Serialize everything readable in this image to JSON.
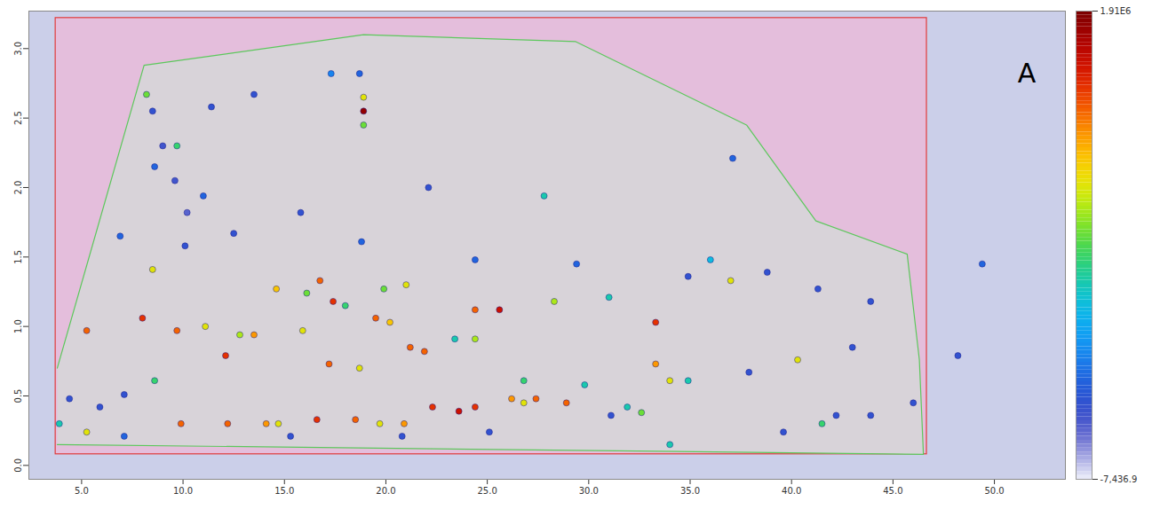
{
  "chart_data": {
    "type": "scatter",
    "xlim": [
      2.4,
      53.5
    ],
    "ylim": [
      -0.1,
      3.27
    ],
    "xticks": [
      {
        "value": 5,
        "label": "5.0"
      },
      {
        "value": 10,
        "label": "10.0"
      },
      {
        "value": 15,
        "label": "15.0"
      },
      {
        "value": 20,
        "label": "20.0"
      },
      {
        "value": 25,
        "label": "25.0"
      },
      {
        "value": 30,
        "label": "30.0"
      },
      {
        "value": 35,
        "label": "35.0"
      },
      {
        "value": 40,
        "label": "40.0"
      },
      {
        "value": 45,
        "label": "45.0"
      },
      {
        "value": 50,
        "label": "50.0"
      }
    ],
    "yticks": [
      {
        "value": 0,
        "label": "0.0"
      },
      {
        "value": 0.5,
        "label": "0.5"
      },
      {
        "value": 1,
        "label": "1.0"
      },
      {
        "value": 1.5,
        "label": "1.5"
      },
      {
        "value": 2,
        "label": "2.0"
      },
      {
        "value": 2.5,
        "label": "2.5"
      },
      {
        "value": 3,
        "label": "3.0"
      }
    ],
    "rectangle": {
      "x": [
        3.72,
        46.67
      ],
      "y": [
        0.08,
        3.22
      ],
      "color": "#e03a3a"
    },
    "polygon": {
      "x": [
        3.8,
        8.08,
        18.9,
        29.36,
        37.78,
        41.2,
        45.7,
        46.3,
        46.5,
        3.8
      ],
      "y": [
        0.7,
        2.88,
        3.1,
        3.05,
        2.45,
        1.76,
        1.52,
        0.76,
        0.08,
        0.15
      ],
      "color": "#5cc85c"
    },
    "peaks": {
      "x": [
        18.9,
        18.9,
        18.9,
        18.7,
        8.2,
        8.5,
        9.0,
        9.6,
        10.2,
        9.7,
        11.0,
        27.8,
        36.0,
        37.0,
        25.6,
        24.4,
        28.3,
        33.3,
        33.3,
        40.3,
        41.5,
        34.0,
        5.25,
        5.25,
        3.9,
        8.0,
        8.5,
        9.7,
        9.9,
        8.6,
        11.1,
        12.1,
        12.8,
        13.5,
        12.2,
        14.1,
        14.7,
        14.6,
        15.9,
        16.1,
        16.75,
        17.4,
        17.2,
        16.6,
        18.7,
        18.0,
        18.5,
        19.5,
        20.2,
        19.7,
        21.0,
        21.2,
        21.9,
        20.9,
        22.3,
        23.6,
        24.4,
        24.4,
        23.4,
        26.8,
        27.4,
        28.9,
        26.8,
        26.2,
        29.8,
        31.9,
        32.6,
        31.0,
        34.0,
        34.9,
        19.9,
        18.8,
        17.3,
        13.5,
        8.6,
        6.9,
        10.1,
        12.5,
        15.8,
        22.1,
        24.4,
        29.4,
        34.9,
        38.8,
        43.9,
        43.0,
        37.9,
        46.0,
        48.2,
        49.4,
        43.9,
        39.6,
        37.1,
        11.4,
        5.9,
        7.1,
        4.4,
        31.1,
        25.1,
        20.8,
        15.3,
        7.1,
        41.3,
        42.2
      ],
      "y": [
        2.65,
        2.55,
        2.45,
        2.82,
        2.67,
        2.55,
        2.3,
        2.05,
        1.82,
        2.3,
        1.94,
        1.94,
        1.48,
        1.33,
        1.12,
        1.12,
        1.18,
        1.03,
        0.73,
        0.76,
        0.3,
        0.15,
        0.97,
        0.24,
        0.3,
        1.06,
        1.41,
        0.97,
        0.3,
        0.61,
        1.0,
        0.79,
        0.94,
        0.94,
        0.3,
        0.3,
        0.3,
        1.27,
        0.97,
        1.24,
        1.33,
        1.18,
        0.73,
        0.33,
        0.7,
        1.15,
        0.33,
        1.06,
        1.03,
        0.3,
        1.3,
        0.85,
        0.82,
        0.3,
        0.42,
        0.39,
        0.42,
        0.91,
        0.91,
        0.61,
        0.48,
        0.45,
        0.45,
        0.48,
        0.58,
        0.42,
        0.38,
        1.21,
        0.61,
        0.61,
        1.27,
        1.61,
        2.82,
        2.67,
        2.15,
        1.65,
        1.58,
        1.67,
        1.82,
        2.0,
        1.48,
        1.45,
        1.36,
        1.39,
        1.18,
        0.85,
        0.67,
        0.45,
        0.79,
        1.45,
        0.36,
        0.24,
        2.21,
        2.58,
        0.42,
        0.51,
        0.48,
        0.36,
        0.24,
        0.21,
        0.21,
        0.21,
        1.27,
        0.36
      ],
      "intensity": [
        1200000,
        1850000,
        1000000,
        400000,
        1000000,
        300000,
        250000,
        250000,
        200000,
        900000,
        400000,
        800000,
        700000,
        1200000,
        1700000,
        1500000,
        1100000,
        1600000,
        1400000,
        1200000,
        900000,
        800000,
        1500000,
        1200000,
        800000,
        1600000,
        1200000,
        1500000,
        1500000,
        900000,
        1200000,
        1600000,
        1100000,
        1400000,
        1500000,
        1400000,
        1200000,
        1300000,
        1200000,
        1000000,
        1500000,
        1600000,
        1500000,
        1600000,
        1200000,
        900000,
        1500000,
        1500000,
        1300000,
        1200000,
        1200000,
        1500000,
        1500000,
        1400000,
        1600000,
        1700000,
        1600000,
        1100000,
        800000,
        900000,
        1500000,
        1500000,
        1200000,
        1400000,
        800000,
        800000,
        1000000,
        800000,
        1200000,
        800000,
        1000000,
        400000,
        500000,
        300000,
        400000,
        400000,
        300000,
        300000,
        300000,
        300000,
        400000,
        400000,
        300000,
        300000,
        300000,
        300000,
        300000,
        300000,
        300000,
        400000,
        300000,
        300000,
        400000,
        300000,
        300000,
        300000,
        300000,
        300000,
        300000,
        300000,
        300000,
        400000,
        300000,
        300000
      ]
    },
    "colorbar": {
      "range": [
        -7436.9,
        1910000
      ],
      "ticks": [
        {
          "value": 1910000,
          "label": "1.91E6"
        },
        {
          "value": -7436.9,
          "label": "-7,436.9"
        }
      ]
    },
    "annotations": [
      {
        "text": "A",
        "x": 51.6,
        "y": 2.82
      }
    ]
  }
}
